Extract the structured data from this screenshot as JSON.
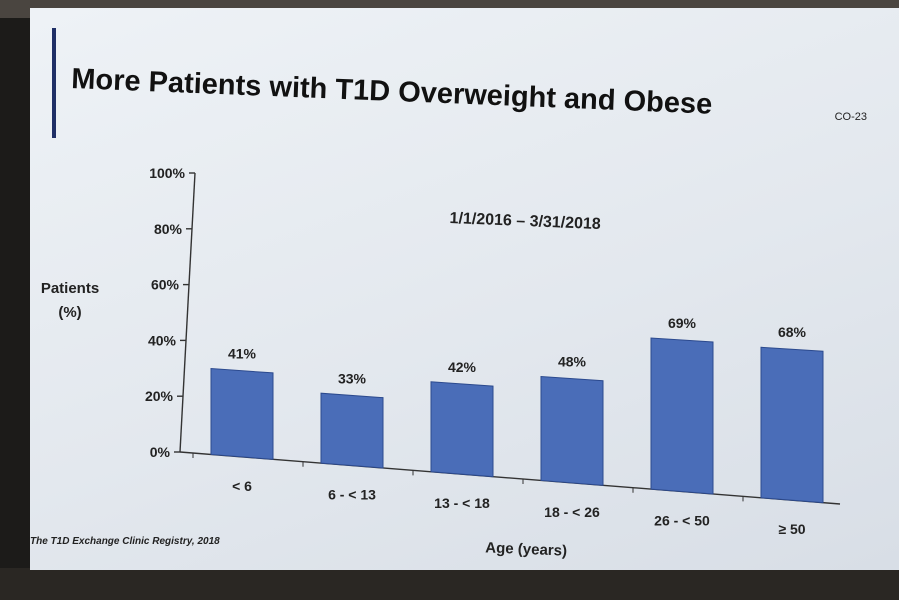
{
  "slide": {
    "title": "More Patients with T1D Overweight and Obese",
    "slide_number": "CO-23",
    "source": "The T1D Exchange Clinic Registry, 2018"
  },
  "colors": {
    "bar": "#4a6db8",
    "bar_edge": "#2c4a8e",
    "title_accent": "#1f2f66",
    "axis": "#333333"
  },
  "chart_data": {
    "type": "bar",
    "subtitle": "1/1/2016 – 3/31/2018",
    "categories": [
      "< 6",
      "6 - < 13",
      "13 - < 18",
      "18 - < 26",
      "26 - < 50",
      "≥ 50"
    ],
    "values": [
      41,
      33,
      42,
      48,
      69,
      68
    ],
    "data_labels": [
      "41%",
      "33%",
      "42%",
      "48%",
      "69%",
      "68%"
    ],
    "xlabel": "Age (years)",
    "ylabel_lines": [
      "Patients",
      "(%)"
    ],
    "ylim": [
      0,
      100
    ],
    "yticks": [
      0,
      20,
      40,
      60,
      80,
      100
    ],
    "ytick_labels": [
      "0%",
      "20%",
      "40%",
      "60%",
      "80%",
      "100%"
    ],
    "grid": false,
    "legend": "none"
  }
}
